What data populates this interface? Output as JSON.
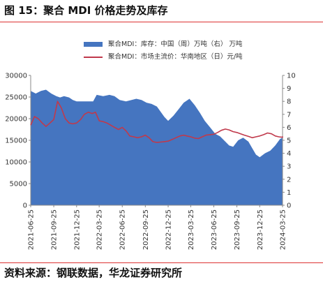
{
  "header": {
    "title": "图 15：聚合 MDI 价格走势及库存"
  },
  "footer": {
    "source": "资料来源：钢联数据，华龙证券研究所"
  },
  "legend": [
    {
      "label": "聚合MDI：库存：中国（周）万吨（右）  万吨",
      "color": "#4575c0",
      "kind": "area"
    },
    {
      "label": "聚合MDI：市场主流价：华南地区（日）元/吨",
      "color": "#c0394b",
      "kind": "line"
    }
  ],
  "chart_data": {
    "type": "area+line",
    "x_start": "2021-06-25",
    "x_end": "2024-03-25",
    "x_ticks": [
      "2021-06-25",
      "2021-09-25",
      "2021-12-25",
      "2022-03-25",
      "2022-06-25",
      "2022-09-25",
      "2022-12-25",
      "2023-03-25",
      "2023-06-25",
      "2023-09-25",
      "2023-12-25",
      "2024-03-25"
    ],
    "y_left": {
      "min": 0,
      "max": 30000,
      "ticks": [
        0,
        5000,
        10000,
        15000,
        20000,
        25000,
        30000
      ]
    },
    "y_right": {
      "min": 0,
      "max": 10,
      "ticks": [
        0,
        1,
        2,
        3,
        4,
        5,
        6,
        7,
        8,
        9,
        10
      ]
    },
    "series": [
      {
        "name": "聚合MDI：库存：中国（周）万吨（右）  万吨",
        "type": "area",
        "axis": "right",
        "color": "#4575c0",
        "points": [
          [
            "2021-06-25",
            8.8
          ],
          [
            "2021-07-15",
            8.6
          ],
          [
            "2021-08-05",
            8.8
          ],
          [
            "2021-08-25",
            8.9
          ],
          [
            "2021-09-15",
            8.6
          ],
          [
            "2021-10-05",
            8.4
          ],
          [
            "2021-10-20",
            8.3
          ],
          [
            "2021-11-05",
            8.4
          ],
          [
            "2021-11-25",
            8.3
          ],
          [
            "2021-12-10",
            8.1
          ],
          [
            "2021-12-25",
            8.0
          ],
          [
            "2022-01-20",
            8.0
          ],
          [
            "2022-02-10",
            8.0
          ],
          [
            "2022-03-01",
            8.0
          ],
          [
            "2022-03-15",
            8.5
          ],
          [
            "2022-04-10",
            8.4
          ],
          [
            "2022-05-05",
            8.5
          ],
          [
            "2022-05-25",
            8.4
          ],
          [
            "2022-06-15",
            8.1
          ],
          [
            "2022-07-10",
            8.0
          ],
          [
            "2022-08-01",
            8.1
          ],
          [
            "2022-08-20",
            8.2
          ],
          [
            "2022-09-10",
            8.1
          ],
          [
            "2022-09-30",
            7.9
          ],
          [
            "2022-10-20",
            7.8
          ],
          [
            "2022-11-10",
            7.6
          ],
          [
            "2022-11-25",
            7.2
          ],
          [
            "2022-12-10",
            6.8
          ],
          [
            "2022-12-25",
            6.5
          ],
          [
            "2023-01-15",
            6.9
          ],
          [
            "2023-02-05",
            7.4
          ],
          [
            "2023-02-25",
            7.9
          ],
          [
            "2023-03-20",
            8.2
          ],
          [
            "2023-04-10",
            7.7
          ],
          [
            "2023-05-01",
            7.1
          ],
          [
            "2023-05-20",
            6.5
          ],
          [
            "2023-06-10",
            6.0
          ],
          [
            "2023-07-01",
            5.5
          ],
          [
            "2023-07-20",
            5.3
          ],
          [
            "2023-08-10",
            4.9
          ],
          [
            "2023-08-25",
            4.6
          ],
          [
            "2023-09-10",
            4.5
          ],
          [
            "2023-09-30",
            5.0
          ],
          [
            "2023-10-20",
            5.2
          ],
          [
            "2023-11-10",
            4.9
          ],
          [
            "2023-11-25",
            4.4
          ],
          [
            "2023-12-10",
            3.9
          ],
          [
            "2023-12-25",
            3.7
          ],
          [
            "2024-01-15",
            4.0
          ],
          [
            "2024-02-05",
            4.2
          ],
          [
            "2024-02-25",
            4.6
          ],
          [
            "2024-03-15",
            5.1
          ],
          [
            "2024-04-01",
            5.2
          ]
        ]
      },
      {
        "name": "聚合MDI：市场主流价：华南地区（日）元/吨",
        "type": "line",
        "axis": "left",
        "color": "#c0394b",
        "points": [
          [
            "2021-06-25",
            18500
          ],
          [
            "2021-07-10",
            20500
          ],
          [
            "2021-07-25",
            20000
          ],
          [
            "2021-08-10",
            19000
          ],
          [
            "2021-08-25",
            18200
          ],
          [
            "2021-09-10",
            19000
          ],
          [
            "2021-09-25",
            19800
          ],
          [
            "2021-10-10",
            24000
          ],
          [
            "2021-10-25",
            22500
          ],
          [
            "2021-11-10",
            20000
          ],
          [
            "2021-11-25",
            19000
          ],
          [
            "2021-12-10",
            18800
          ],
          [
            "2021-12-25",
            19000
          ],
          [
            "2022-01-10",
            19800
          ],
          [
            "2022-01-25",
            21000
          ],
          [
            "2022-02-10",
            21500
          ],
          [
            "2022-02-25",
            21200
          ],
          [
            "2022-03-10",
            21500
          ],
          [
            "2022-03-25",
            19500
          ],
          [
            "2022-04-10",
            19300
          ],
          [
            "2022-04-25",
            19000
          ],
          [
            "2022-05-10",
            18500
          ],
          [
            "2022-05-25",
            18000
          ],
          [
            "2022-06-10",
            17500
          ],
          [
            "2022-06-25",
            18000
          ],
          [
            "2022-07-10",
            17200
          ],
          [
            "2022-07-25",
            16000
          ],
          [
            "2022-08-10",
            15800
          ],
          [
            "2022-08-25",
            15600
          ],
          [
            "2022-09-10",
            15800
          ],
          [
            "2022-09-25",
            16200
          ],
          [
            "2022-10-10",
            15600
          ],
          [
            "2022-10-25",
            14700
          ],
          [
            "2022-11-10",
            14500
          ],
          [
            "2022-11-25",
            14600
          ],
          [
            "2022-12-10",
            14700
          ],
          [
            "2022-12-25",
            14800
          ],
          [
            "2023-01-10",
            15200
          ],
          [
            "2023-01-25",
            15600
          ],
          [
            "2023-02-10",
            16000
          ],
          [
            "2023-02-25",
            16200
          ],
          [
            "2023-03-10",
            16000
          ],
          [
            "2023-03-25",
            15800
          ],
          [
            "2023-04-10",
            15500
          ],
          [
            "2023-04-25",
            15400
          ],
          [
            "2023-05-10",
            15800
          ],
          [
            "2023-05-25",
            16200
          ],
          [
            "2023-06-10",
            16300
          ],
          [
            "2023-06-25",
            16400
          ],
          [
            "2023-07-10",
            16800
          ],
          [
            "2023-07-25",
            17300
          ],
          [
            "2023-08-10",
            17600
          ],
          [
            "2023-08-25",
            17400
          ],
          [
            "2023-09-10",
            17000
          ],
          [
            "2023-09-25",
            16800
          ],
          [
            "2023-10-10",
            16500
          ],
          [
            "2023-10-25",
            16200
          ],
          [
            "2023-11-10",
            15900
          ],
          [
            "2023-11-25",
            15600
          ],
          [
            "2023-12-10",
            15800
          ],
          [
            "2023-12-25",
            16000
          ],
          [
            "2024-01-10",
            16300
          ],
          [
            "2024-01-25",
            16700
          ],
          [
            "2024-02-10",
            16500
          ],
          [
            "2024-02-25",
            16000
          ],
          [
            "2024-03-10",
            15800
          ],
          [
            "2024-03-25",
            15700
          ],
          [
            "2024-04-01",
            15900
          ]
        ]
      }
    ],
    "grid": false
  }
}
